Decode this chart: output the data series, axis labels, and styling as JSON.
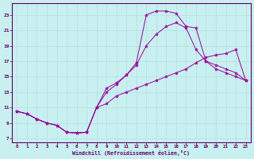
{
  "xlabel": "Windchill (Refroidissement éolien,°C)",
  "background_color": "#c8f0f0",
  "line_color": "#990099",
  "grid_color": "#b8dede",
  "axis_color": "#660066",
  "text_color": "#660066",
  "xlim": [
    -0.5,
    23.5
  ],
  "ylim": [
    6.5,
    24.5
  ],
  "xticks": [
    0,
    1,
    2,
    3,
    4,
    5,
    6,
    7,
    8,
    9,
    10,
    11,
    12,
    13,
    14,
    15,
    16,
    17,
    18,
    19,
    20,
    21,
    22,
    23
  ],
  "yticks": [
    7,
    9,
    11,
    13,
    15,
    17,
    19,
    21,
    23
  ],
  "line1_x": [
    0,
    1,
    2,
    3,
    4,
    5,
    6,
    7,
    8,
    9,
    10,
    11,
    12,
    13,
    14,
    15,
    16,
    17,
    18,
    19,
    20,
    21,
    22,
    23
  ],
  "line1_y": [
    10.5,
    10.2,
    9.5,
    9.0,
    8.7,
    7.8,
    7.7,
    7.8,
    11.0,
    13.5,
    14.2,
    15.2,
    16.8,
    23.0,
    23.5,
    23.5,
    23.2,
    21.5,
    21.3,
    17.0,
    16.0,
    15.5,
    15.0,
    14.5
  ],
  "line2_x": [
    0,
    1,
    2,
    3,
    4,
    5,
    6,
    7,
    8,
    9,
    10,
    11,
    12,
    13,
    14,
    15,
    16,
    17,
    18,
    19,
    20,
    21,
    22,
    23
  ],
  "line2_y": [
    10.5,
    10.2,
    9.5,
    9.0,
    8.7,
    7.8,
    7.7,
    7.8,
    11.0,
    13.0,
    14.0,
    15.2,
    16.5,
    19.0,
    20.5,
    21.5,
    22.0,
    21.3,
    18.5,
    17.0,
    16.5,
    16.0,
    15.5,
    14.5
  ],
  "line3_x": [
    0,
    1,
    2,
    3,
    4,
    5,
    6,
    7,
    8,
    9,
    10,
    11,
    12,
    13,
    14,
    15,
    16,
    17,
    18,
    19,
    20,
    21,
    22,
    23
  ],
  "line3_y": [
    10.5,
    10.2,
    9.5,
    9.0,
    8.7,
    7.8,
    7.7,
    7.8,
    11.0,
    11.5,
    12.5,
    13.0,
    13.5,
    14.0,
    14.5,
    15.0,
    15.5,
    16.0,
    16.8,
    17.5,
    17.8,
    18.0,
    18.5,
    14.5
  ]
}
